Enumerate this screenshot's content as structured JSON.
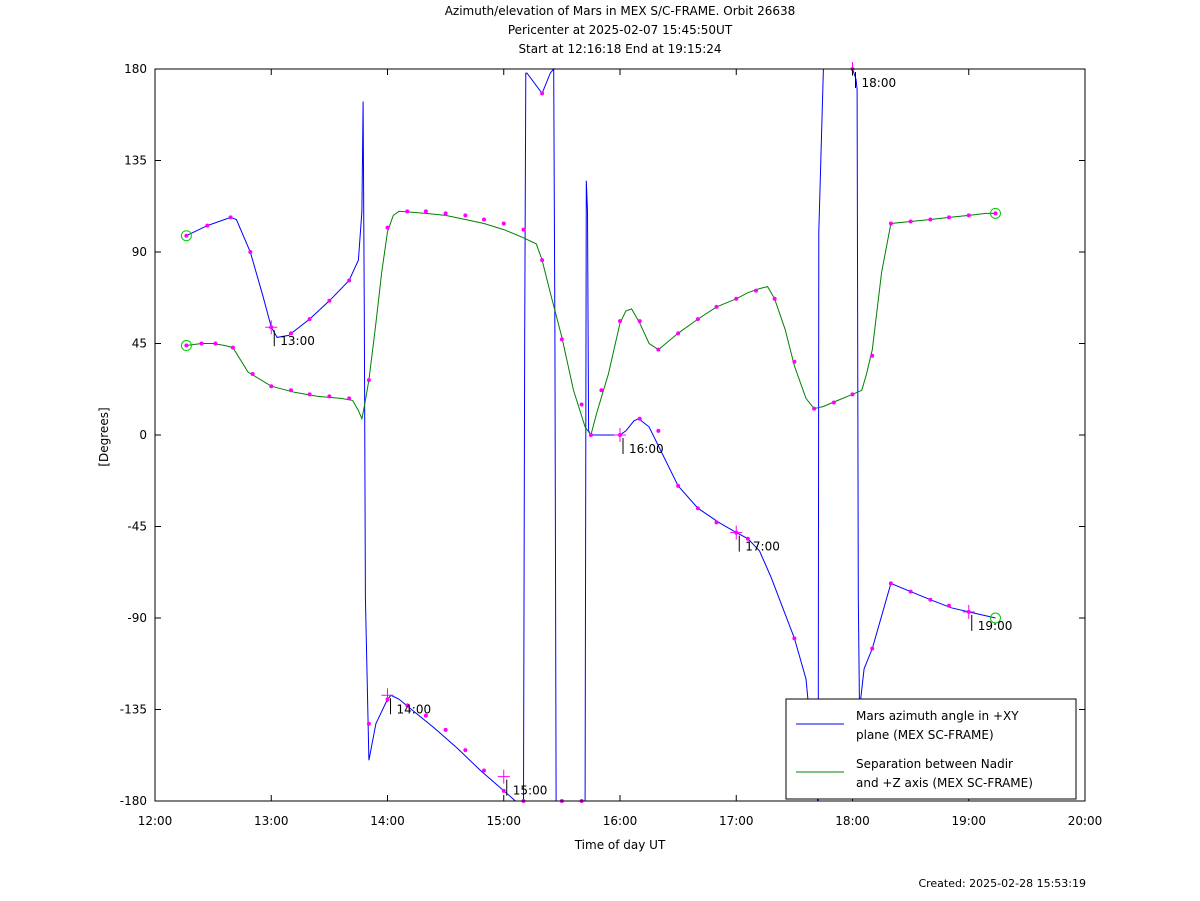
{
  "chart_data": {
    "type": "line",
    "title_lines": [
      "Azimuth/elevation of Mars in MEX S/C-FRAME.  Orbit 26638",
      "Pericenter at 2025-02-07 15:45:50UT",
      "Start at 12:16:18 End at 19:15:24"
    ],
    "xlabel": "Time of day UT",
    "ylabel": "[Degrees]",
    "xlim": [
      12.0,
      20.0
    ],
    "ylim": [
      -180,
      180
    ],
    "x_ticks": [
      {
        "v": 12,
        "label": "12:00"
      },
      {
        "v": 13,
        "label": "13:00"
      },
      {
        "v": 14,
        "label": "14:00"
      },
      {
        "v": 15,
        "label": "15:00"
      },
      {
        "v": 16,
        "label": "16:00"
      },
      {
        "v": 17,
        "label": "17:00"
      },
      {
        "v": 18,
        "label": "18:00"
      },
      {
        "v": 19,
        "label": "19:00"
      },
      {
        "v": 20,
        "label": "20:00"
      }
    ],
    "y_ticks": [
      {
        "v": 180,
        "label": "180"
      },
      {
        "v": 135,
        "label": "135"
      },
      {
        "v": 90,
        "label": "90"
      },
      {
        "v": 45,
        "label": "45"
      },
      {
        "v": 0,
        "label": "0"
      },
      {
        "v": -45,
        "label": "-45"
      },
      {
        "v": -90,
        "label": "-90"
      },
      {
        "v": -135,
        "label": "-135"
      },
      {
        "v": -180,
        "label": "-180"
      }
    ],
    "grid": false,
    "legend_position": "bottom-right",
    "series": [
      {
        "name": "Mars azimuth angle in +XY plane (MEX SC-FRAME)",
        "legend_lines": [
          "Mars azimuth angle in +XY",
          "plane (MEX SC-FRAME)"
        ],
        "color": "#0000ff",
        "x": [
          12.27,
          12.45,
          12.65,
          12.7,
          12.82,
          12.93,
          13.0,
          13.05,
          13.15,
          13.33,
          13.5,
          13.67,
          13.75,
          13.78,
          13.79,
          13.8,
          13.81,
          13.84,
          13.9,
          14.0,
          14.03,
          14.1,
          14.25,
          14.4,
          14.6,
          14.8,
          15.0,
          15.1,
          15.17,
          15.18,
          15.19,
          15.2,
          15.33,
          15.4,
          15.43,
          15.44,
          15.45,
          15.6,
          15.7,
          15.71,
          15.72,
          15.73,
          15.75,
          15.8,
          16.0,
          16.05,
          16.12,
          16.16,
          16.25,
          16.5,
          16.67,
          16.85,
          17.0,
          17.1,
          17.2,
          17.3,
          17.5,
          17.6,
          17.7,
          17.705,
          17.71,
          17.75,
          17.85,
          18.0,
          18.03,
          18.04,
          18.05,
          18.06,
          18.1,
          18.17,
          18.33,
          18.5,
          18.67,
          18.85,
          19.0,
          19.23
        ],
        "y": [
          98,
          103,
          107,
          106,
          90,
          68,
          53,
          48,
          49,
          57,
          66,
          76,
          86,
          110,
          164,
          60,
          -80,
          -160,
          -142,
          -130,
          -128,
          -130,
          -137,
          -144,
          -154,
          -165,
          -175,
          -180,
          -180,
          50,
          178,
          178,
          168,
          178,
          180,
          50,
          -180,
          -180,
          -180,
          125,
          110,
          2,
          0,
          0,
          0,
          2,
          7,
          8,
          4,
          -25,
          -36,
          -43,
          -48,
          -51,
          -57,
          -70,
          -100,
          -120,
          -180,
          -180,
          100,
          180,
          180,
          180,
          175,
          170,
          -80,
          -135,
          -115,
          -105,
          -73,
          -77,
          -81,
          -85,
          -87,
          -90
        ],
        "markers_x": [
          12.27,
          12.45,
          12.65,
          12.82,
          13.0,
          13.17,
          13.33,
          13.5,
          13.67,
          13.84,
          14.0,
          14.17,
          14.33,
          14.5,
          14.67,
          14.83,
          15.0,
          15.17,
          15.33,
          15.5,
          15.67,
          16.0,
          16.17,
          16.33,
          16.5,
          16.67,
          16.83,
          17.0,
          17.1,
          17.5,
          18.0,
          18.17,
          18.33,
          18.5,
          18.67,
          18.83,
          19.0
        ],
        "markers_y": [
          98,
          103,
          107,
          90,
          53,
          50,
          57,
          66,
          76,
          -142,
          -130,
          -133,
          -138,
          -145,
          -155,
          -165,
          -175,
          -180,
          168,
          -180,
          -180,
          0,
          8,
          2,
          -25,
          -36,
          -43,
          -48,
          -51,
          -100,
          180,
          -105,
          -73,
          -77,
          -81,
          -84,
          -87
        ],
        "start": [
          12.27,
          98
        ],
        "end": [
          19.23,
          -90
        ]
      },
      {
        "name": "Separation between Nadir and +Z axis (MEX SC-FRAME)",
        "legend_lines": [
          "Separation between Nadir",
          "and +Z axis (MEX SC-FRAME)"
        ],
        "color": "#008000",
        "x": [
          12.27,
          12.4,
          12.5,
          12.6,
          12.67,
          12.8,
          13.0,
          13.2,
          13.4,
          13.6,
          13.7,
          13.75,
          13.78,
          13.8,
          13.84,
          13.9,
          13.95,
          14.0,
          14.05,
          14.1,
          14.33,
          14.5,
          14.67,
          14.83,
          15.0,
          15.17,
          15.28,
          15.33,
          15.4,
          15.5,
          15.6,
          15.7,
          15.75,
          15.8,
          15.9,
          16.0,
          16.05,
          16.1,
          16.17,
          16.25,
          16.33,
          16.5,
          16.67,
          16.83,
          17.0,
          17.1,
          17.2,
          17.27,
          17.33,
          17.42,
          17.5,
          17.6,
          17.67,
          17.75,
          17.83,
          18.0,
          18.08,
          18.12,
          18.17,
          18.25,
          18.33,
          18.5,
          18.67,
          18.83,
          19.0,
          19.15,
          19.23
        ],
        "y": [
          44,
          45,
          45,
          44,
          43,
          31,
          24,
          21,
          19,
          18,
          17,
          12,
          8,
          14,
          27,
          55,
          80,
          100,
          108,
          110,
          109,
          108,
          106,
          104,
          101,
          97,
          94,
          86,
          70,
          48,
          22,
          4,
          0,
          11,
          30,
          55,
          61,
          62,
          55,
          45,
          42,
          50,
          57,
          63,
          67,
          70,
          72,
          73,
          67,
          52,
          34,
          18,
          13,
          14,
          16,
          20,
          22,
          30,
          42,
          80,
          104,
          105,
          106,
          107,
          108,
          109,
          109
        ],
        "markers_x": [
          12.27,
          12.4,
          12.52,
          12.67,
          12.84,
          13.0,
          13.17,
          13.33,
          13.5,
          13.67,
          13.84,
          14.0,
          14.17,
          14.33,
          14.5,
          14.67,
          14.83,
          15.0,
          15.17,
          15.33,
          15.5,
          15.67,
          15.75,
          15.84,
          16.0,
          16.17,
          16.33,
          16.5,
          16.67,
          16.83,
          17.0,
          17.17,
          17.33,
          17.5,
          17.67,
          17.84,
          18.0,
          18.17,
          18.33,
          18.5,
          18.67,
          18.83,
          19.0,
          19.23
        ],
        "markers_y": [
          44,
          45,
          45,
          43,
          30,
          24,
          22,
          20,
          19,
          18,
          27,
          102,
          110,
          110,
          109,
          108,
          106,
          104,
          101,
          86,
          47,
          15,
          0,
          22,
          56,
          56,
          42,
          50,
          57,
          63,
          67,
          71,
          67,
          36,
          13,
          16,
          20,
          39,
          104,
          105,
          106,
          107,
          108,
          109
        ],
        "start": [
          12.27,
          44
        ],
        "end": [
          19.23,
          109
        ]
      }
    ],
    "hour_marks": [
      {
        "label": "13:00",
        "x": 13.0,
        "y": 53
      },
      {
        "label": "14:00",
        "x": 14.0,
        "y": -128
      },
      {
        "label": "15:00",
        "x": 15.0,
        "y": -168
      },
      {
        "label": "16:00",
        "x": 16.0,
        "y": 0
      },
      {
        "label": "17:00",
        "x": 17.0,
        "y": -48
      },
      {
        "label": "18:00",
        "x": 18.0,
        "y": 180
      },
      {
        "label": "19:00",
        "x": 19.0,
        "y": -87
      }
    ],
    "footer": "Created: 2025-02-28 15:53:19"
  }
}
